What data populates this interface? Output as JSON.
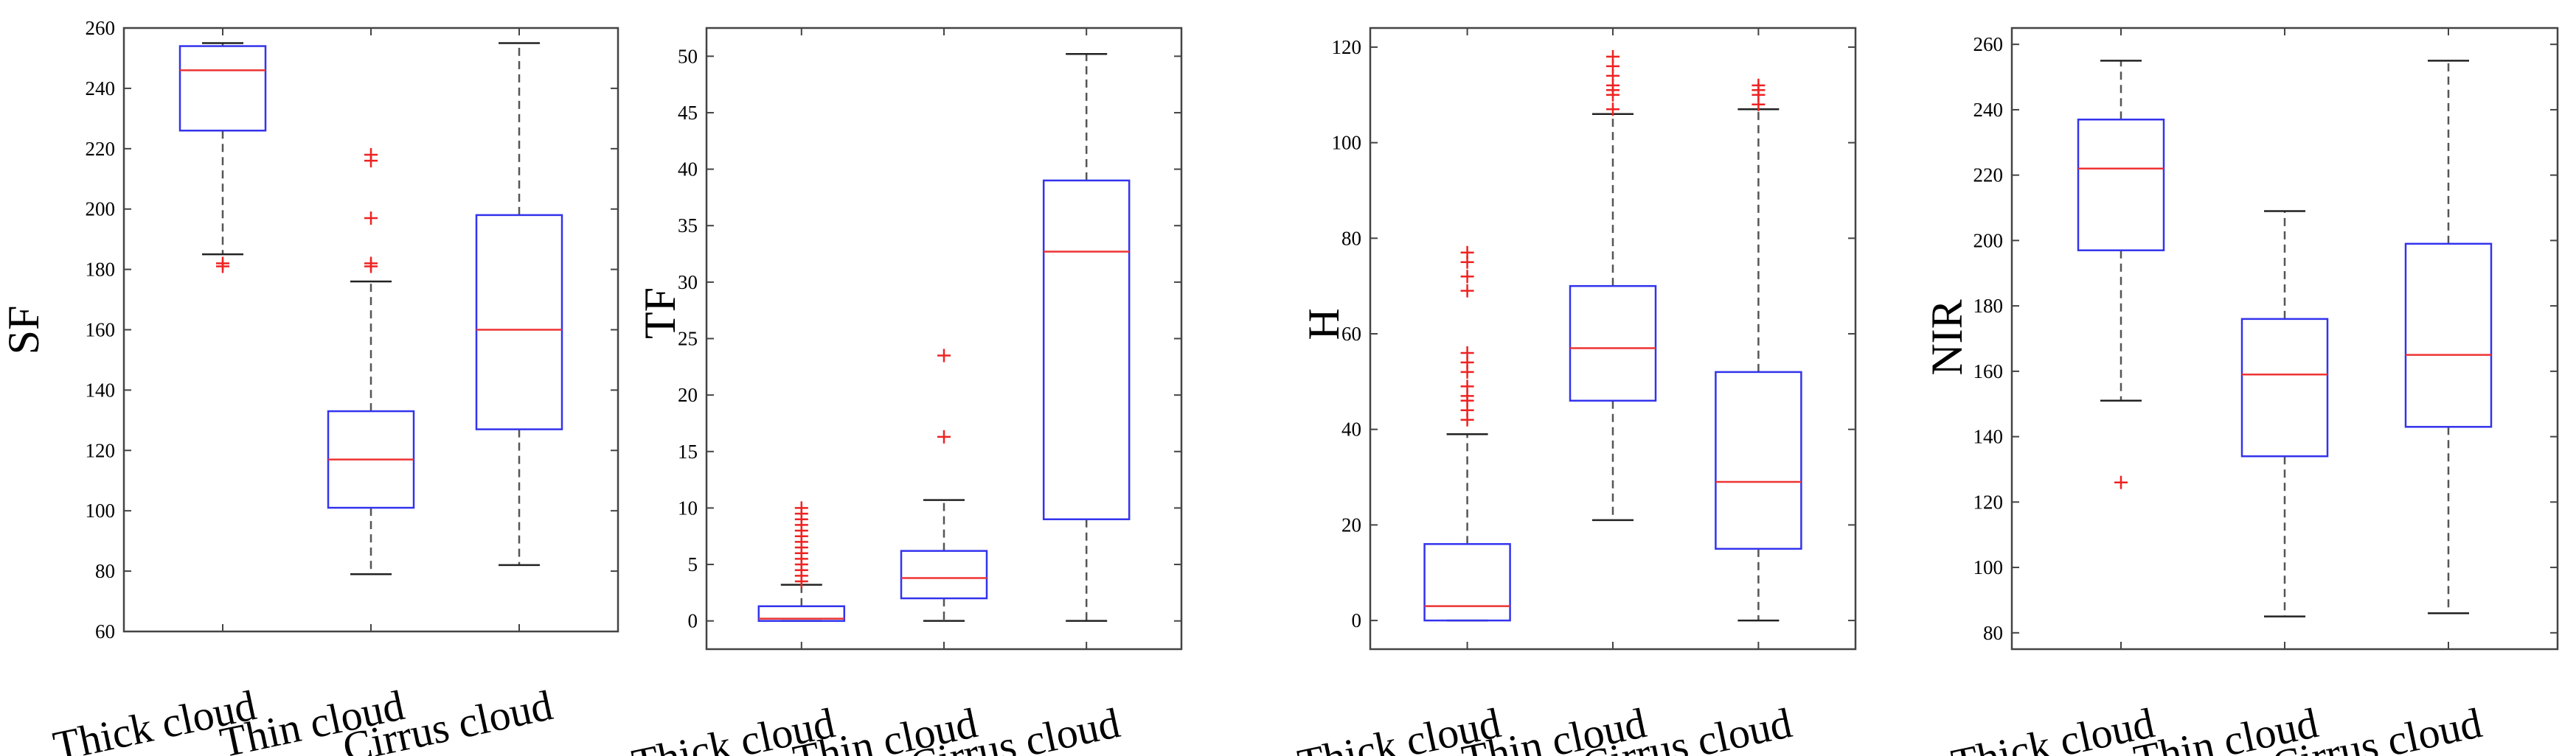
{
  "chart_data": [
    {
      "type": "box",
      "ylabel": "SF",
      "categories": [
        "Thick cloud",
        "Thin cloud",
        "Cirrus cloud"
      ],
      "ylim": [
        60,
        260
      ],
      "yticks": [
        60,
        80,
        100,
        120,
        140,
        160,
        180,
        200,
        220,
        240,
        260
      ],
      "boxes": [
        {
          "category": "Thick cloud",
          "whisker_low": 185,
          "q1": 226,
          "median": 246,
          "q3": 254,
          "whisker_high": 255,
          "outliers": [
            181,
            182
          ]
        },
        {
          "category": "Thin cloud",
          "whisker_low": 79,
          "q1": 101,
          "median": 117,
          "q3": 133,
          "whisker_high": 176,
          "outliers": [
            181,
            182,
            197,
            216,
            218
          ]
        },
        {
          "category": "Cirrus cloud",
          "whisker_low": 82,
          "q1": 127,
          "median": 160,
          "q3": 198,
          "whisker_high": 255,
          "outliers": []
        }
      ]
    },
    {
      "type": "box",
      "ylabel": "TF",
      "categories": [
        "Thick cloud",
        "Thin cloud",
        "Cirrus cloud"
      ],
      "ylim": [
        -2.5,
        52.5
      ],
      "yticks": [
        0,
        5,
        10,
        15,
        20,
        25,
        30,
        35,
        40,
        45,
        50
      ],
      "boxes": [
        {
          "category": "Thick cloud",
          "whisker_low": 0,
          "q1": 0,
          "median": 0.2,
          "q3": 1.3,
          "whisker_high": 3.2,
          "outliers": [
            3.5,
            4.0,
            4.5,
            5.0,
            5.5,
            6.0,
            6.5,
            7.0,
            7.5,
            8.0,
            8.5,
            9.0,
            9.5,
            10.0
          ]
        },
        {
          "category": "Thin cloud",
          "whisker_low": 0,
          "q1": 2.0,
          "median": 3.8,
          "q3": 6.2,
          "whisker_high": 10.7,
          "outliers": [
            16.3,
            23.5
          ]
        },
        {
          "category": "Cirrus cloud",
          "whisker_low": 0,
          "q1": 9.0,
          "median": 32.7,
          "q3": 39.0,
          "whisker_high": 50.2,
          "outliers": []
        }
      ]
    },
    {
      "type": "box",
      "ylabel": "H",
      "categories": [
        "Thick cloud",
        "Thin cloud",
        "Cirrus cloud"
      ],
      "ylim": [
        -6,
        124
      ],
      "yticks": [
        0,
        20,
        40,
        60,
        80,
        100,
        120
      ],
      "boxes": [
        {
          "category": "Thick cloud",
          "whisker_low": 0,
          "q1": 0,
          "median": 3,
          "q3": 16,
          "whisker_high": 39,
          "outliers": [
            42,
            44,
            46,
            47,
            49,
            52,
            54,
            56,
            69,
            72,
            75,
            77
          ]
        },
        {
          "category": "Thin cloud",
          "whisker_low": 21,
          "q1": 46,
          "median": 57,
          "q3": 70,
          "whisker_high": 106,
          "outliers": [
            107,
            110,
            111,
            112,
            114,
            116,
            118
          ]
        },
        {
          "category": "Cirrus cloud",
          "whisker_low": 0,
          "q1": 15,
          "median": 29,
          "q3": 52,
          "whisker_high": 107,
          "outliers": [
            108,
            110,
            111,
            112
          ]
        }
      ]
    },
    {
      "type": "box",
      "ylabel": "NIR",
      "categories": [
        "Thick cloud",
        "Thin cloud",
        "Cirrus cloud"
      ],
      "ylim": [
        75,
        265
      ],
      "yticks": [
        80,
        100,
        120,
        140,
        160,
        180,
        200,
        220,
        240,
        260
      ],
      "boxes": [
        {
          "category": "Thick cloud",
          "whisker_low": 151,
          "q1": 197,
          "median": 222,
          "q3": 237,
          "whisker_high": 255,
          "outliers": [
            126
          ]
        },
        {
          "category": "Thin cloud",
          "whisker_low": 85,
          "q1": 134,
          "median": 159,
          "q3": 176,
          "whisker_high": 209,
          "outliers": []
        },
        {
          "category": "Cirrus cloud",
          "whisker_low": 86,
          "q1": 143,
          "median": 165,
          "q3": 199,
          "whisker_high": 255,
          "outliers": []
        }
      ]
    }
  ],
  "colors": {
    "box": "#3333ee",
    "median": "#ee3333",
    "whisker": "#555555",
    "outlier": "#ee2222",
    "axis": "#444444"
  }
}
